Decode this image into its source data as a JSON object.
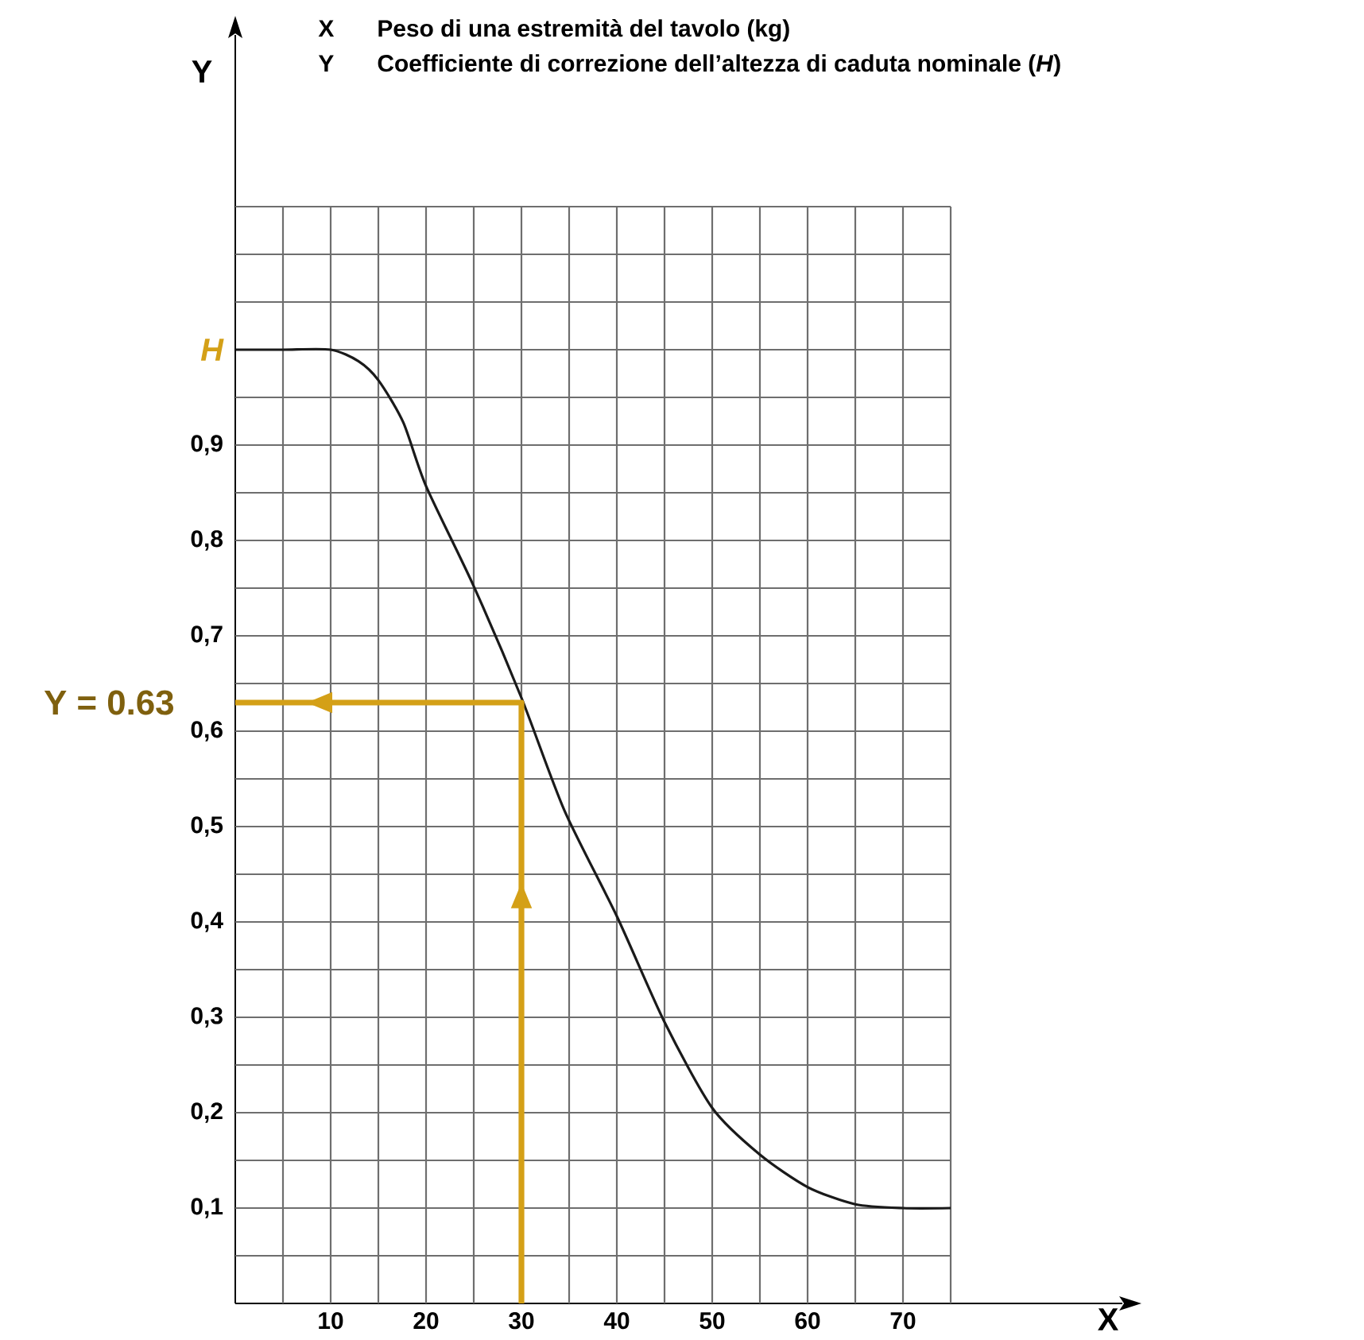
{
  "chart_data": {
    "type": "line",
    "xlabel": "X",
    "ylabel": "Y",
    "annotations": [
      "X",
      "Peso di una estremità del tavolo (kg)",
      "Y",
      "Coefficiente di correzione dell’altezza di caduta nominale (*H*)",
      {
        "text": "Y = 0.63",
        "x": 0,
        "y": 0.63
      }
    ],
    "series": [
      {
        "type": "line",
        "color": "#1a1a1a",
        "x": [
          0,
          5,
          10,
          12.9,
          15,
          17.6,
          20,
          25,
          30,
          34.5,
          40,
          45,
          50,
          55,
          60,
          65,
          70,
          75
        ],
        "values": [
          1.0,
          1.0,
          1.0,
          0.988,
          0.968,
          0.924,
          0.857,
          0.752,
          0.635,
          0.517,
          0.406,
          0.295,
          0.205,
          0.156,
          0.122,
          0.104,
          0.1,
          0.1
        ]
      },
      {
        "type": "line",
        "color": "#d4a017",
        "x": [
          30,
          30,
          0
        ],
        "values": [
          0,
          0.63,
          0.63
        ]
      }
    ],
    "xlim": [
      0,
      93
    ],
    "ylim": [
      0,
      1.33
    ],
    "xticks": [
      {
        "value": 5,
        "label": null
      },
      10,
      {
        "value": 15,
        "label": null
      },
      20,
      {
        "value": 25,
        "label": null
      },
      30,
      {
        "value": 35,
        "label": null
      },
      40,
      {
        "value": 45,
        "label": null
      },
      50,
      {
        "value": 55,
        "label": null
      },
      60,
      {
        "value": 65,
        "label": null
      },
      70,
      {
        "value": 75,
        "label": null
      }
    ],
    "yticks": [
      {
        "value": 0.05,
        "label": null
      },
      {
        "value": 0.1,
        "label": "0,1"
      },
      {
        "value": 0.15,
        "label": null
      },
      {
        "value": 0.2,
        "label": "0,2"
      },
      {
        "value": 0.25,
        "label": null
      },
      {
        "value": 0.3,
        "label": "0,3"
      },
      {
        "value": 0.35,
        "label": null
      },
      {
        "value": 0.4,
        "label": "0,4"
      },
      {
        "value": 0.45,
        "label": null
      },
      {
        "value": 0.5,
        "label": "0,5"
      },
      {
        "value": 0.55,
        "label": null
      },
      {
        "value": 0.6,
        "label": "0,6"
      },
      {
        "value": 0.65,
        "label": null
      },
      {
        "value": 0.7,
        "label": "0,7"
      },
      {
        "value": 0.75,
        "label": null
      },
      {
        "value": 0.8,
        "label": "0,8"
      },
      {
        "value": 0.85,
        "label": null
      },
      {
        "value": 0.9,
        "label": "0,9"
      },
      {
        "value": 0.95,
        "label": null
      },
      {
        "value": 1.0,
        "label": "H"
      },
      {
        "value": 1.05,
        "label": null
      },
      {
        "value": 1.1,
        "label": null
      },
      {
        "value": 1.15,
        "label": null
      }
    ],
    "grid": true,
    "marker": "none",
    "line_style": "solid"
  }
}
